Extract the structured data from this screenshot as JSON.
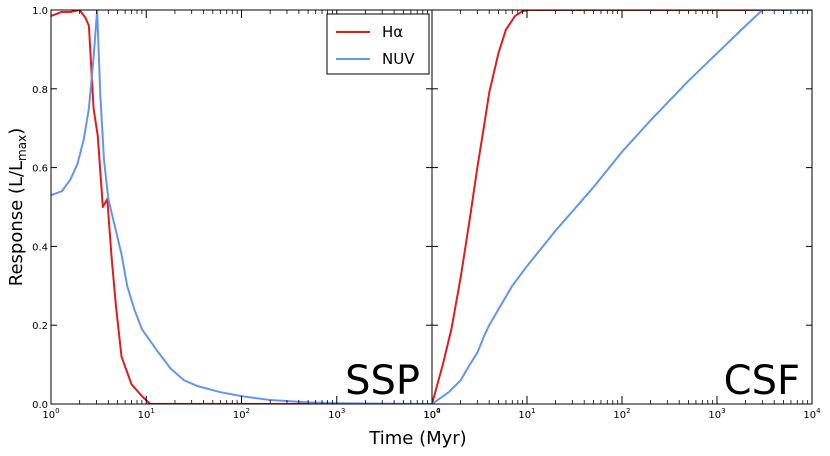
{
  "chart_data": {
    "type": "line",
    "xlabel": "Time (Myr)",
    "ylabel_base": "Response (L/L",
    "ylabel_sub": "max",
    "ylabel_close": ")",
    "legend": [
      {
        "name": "Hα",
        "color": "#e41a1c"
      },
      {
        "name": "NUV",
        "color": "#6495ed"
      }
    ],
    "y_ticks": [
      "0.0",
      "0.2",
      "0.4",
      "0.6",
      "0.8",
      "1.0"
    ],
    "ylim": [
      0,
      1
    ],
    "panels": [
      {
        "label": "SSP",
        "xlim_log10": [
          0,
          4
        ],
        "x_tick_labels": [
          "10",
          "10",
          "10",
          "10",
          "10"
        ],
        "x_tick_exponents": [
          "0",
          "1",
          "2",
          "3",
          "4"
        ],
        "series": [
          {
            "name": "Hα",
            "color": "#e41a1c",
            "points": [
              [
                1.0,
                0.985
              ],
              [
                1.3,
                0.995
              ],
              [
                1.6,
                0.995
              ],
              [
                2.0,
                1.0
              ],
              [
                2.3,
                0.98
              ],
              [
                2.5,
                0.96
              ],
              [
                2.8,
                0.75
              ],
              [
                3.1,
                0.68
              ],
              [
                3.5,
                0.5
              ],
              [
                3.9,
                0.52
              ],
              [
                4.3,
                0.38
              ],
              [
                4.8,
                0.25
              ],
              [
                5.5,
                0.12
              ],
              [
                7.0,
                0.05
              ],
              [
                9.0,
                0.02
              ],
              [
                11.0,
                0.0
              ],
              [
                20.0,
                0.0
              ],
              [
                100.0,
                0.0
              ],
              [
                1000.0,
                0.0
              ],
              [
                10000.0,
                0.0
              ]
            ]
          },
          {
            "name": "NUV",
            "color": "#6495ed",
            "points": [
              [
                1.0,
                0.53
              ],
              [
                1.3,
                0.54
              ],
              [
                1.6,
                0.57
              ],
              [
                1.9,
                0.61
              ],
              [
                2.2,
                0.67
              ],
              [
                2.5,
                0.75
              ],
              [
                2.8,
                0.88
              ],
              [
                3.05,
                1.0
              ],
              [
                3.3,
                0.78
              ],
              [
                3.6,
                0.62
              ],
              [
                4.0,
                0.52
              ],
              [
                4.8,
                0.44
              ],
              [
                5.5,
                0.38
              ],
              [
                6.3,
                0.3
              ],
              [
                7.5,
                0.24
              ],
              [
                9.0,
                0.19
              ],
              [
                11.0,
                0.16
              ],
              [
                13.5,
                0.13
              ],
              [
                18.0,
                0.09
              ],
              [
                25.0,
                0.06
              ],
              [
                35.0,
                0.045
              ],
              [
                60.0,
                0.03
              ],
              [
                100.0,
                0.02
              ],
              [
                200.0,
                0.01
              ],
              [
                500.0,
                0.004
              ],
              [
                1000.0,
                0.002
              ],
              [
                10000.0,
                0.0
              ]
            ]
          }
        ]
      },
      {
        "label": "CSF",
        "xlim_log10": [
          0,
          4
        ],
        "x_tick_labels": [
          "10",
          "10",
          "10",
          "10",
          "10"
        ],
        "x_tick_exponents": [
          "0",
          "1",
          "2",
          "3",
          "4"
        ],
        "series": [
          {
            "name": "Hα",
            "color": "#e41a1c",
            "points": [
              [
                1.0,
                0.0
              ],
              [
                1.3,
                0.1
              ],
              [
                1.6,
                0.19
              ],
              [
                2.0,
                0.32
              ],
              [
                2.5,
                0.47
              ],
              [
                3.0,
                0.6
              ],
              [
                3.5,
                0.7
              ],
              [
                4.0,
                0.79
              ],
              [
                5.0,
                0.89
              ],
              [
                6.0,
                0.95
              ],
              [
                7.5,
                0.985
              ],
              [
                9.0,
                0.997
              ],
              [
                10.5,
                1.0
              ],
              [
                20.0,
                1.0
              ],
              [
                100.0,
                1.0
              ],
              [
                1000.0,
                1.0
              ],
              [
                10000.0,
                1.0
              ]
            ]
          },
          {
            "name": "NUV",
            "color": "#6495ed",
            "points": [
              [
                1.0,
                0.0
              ],
              [
                1.5,
                0.03
              ],
              [
                2.0,
                0.06
              ],
              [
                2.5,
                0.1
              ],
              [
                3.0,
                0.13
              ],
              [
                3.5,
                0.17
              ],
              [
                4.0,
                0.2
              ],
              [
                5.0,
                0.24
              ],
              [
                7.0,
                0.3
              ],
              [
                10.0,
                0.35
              ],
              [
                20.0,
                0.44
              ],
              [
                50.0,
                0.55
              ],
              [
                100.0,
                0.64
              ],
              [
                200.0,
                0.72
              ],
              [
                500.0,
                0.82
              ],
              [
                1000.0,
                0.89
              ],
              [
                2000.0,
                0.96
              ],
              [
                3000.0,
                1.0
              ],
              [
                10000.0,
                1.0
              ]
            ]
          }
        ]
      }
    ]
  }
}
